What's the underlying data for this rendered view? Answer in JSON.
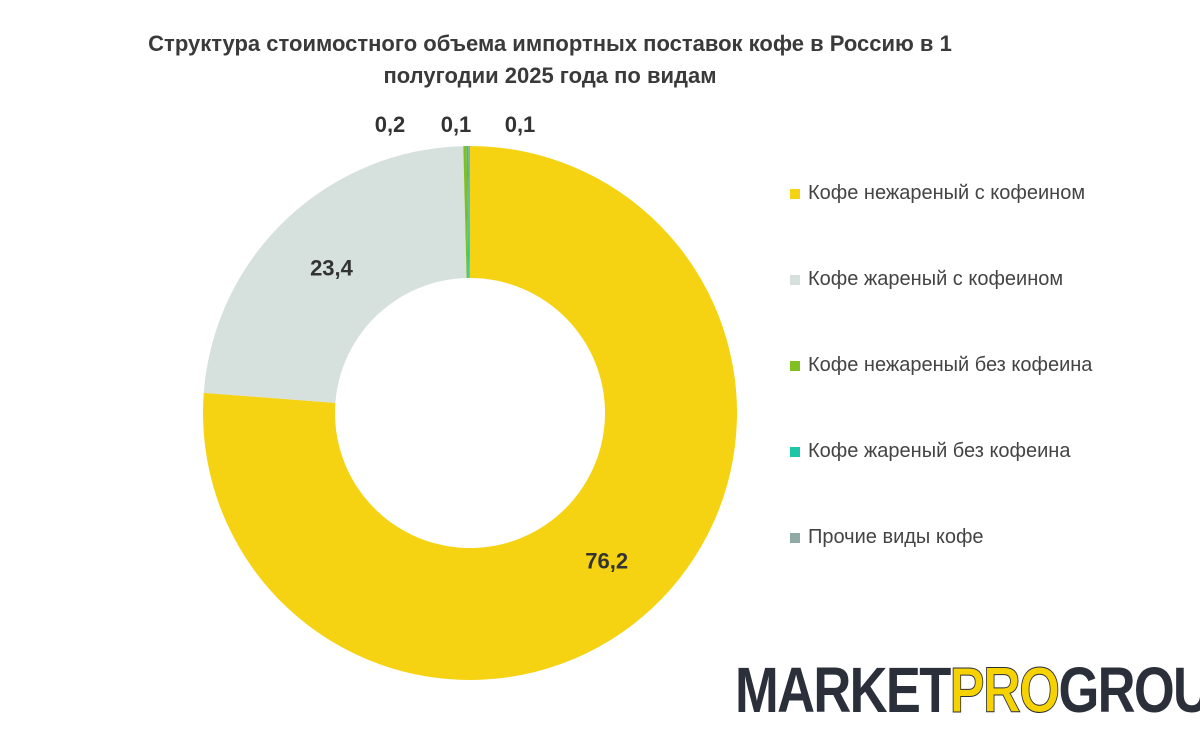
{
  "chart_data": {
    "type": "pie",
    "title": "Структура стоимостного объема импортных поставок кофе в Россию в 1 полугодии 2025 года по видам",
    "labels": [
      "Кофе нежареный с кофеином",
      "Кофе жареный с кофеином",
      "Кофе нежареный без кофеина",
      "Кофе жареный без кофеина",
      "Прочие виды кофе"
    ],
    "values": [
      76.2,
      23.4,
      0.2,
      0.1,
      0.1
    ],
    "value_labels": [
      "76,2",
      "23,4",
      "0,2",
      "0,1",
      "0,1"
    ],
    "colors": [
      "#f5d312",
      "#d6e0dd",
      "#7fbf1f",
      "#1cc7a8",
      "#8faaa4"
    ],
    "donut": true,
    "legend_position": "right"
  },
  "logo": {
    "part1": "MARKET",
    "part2": "PRO",
    "part3": "GROUP"
  }
}
